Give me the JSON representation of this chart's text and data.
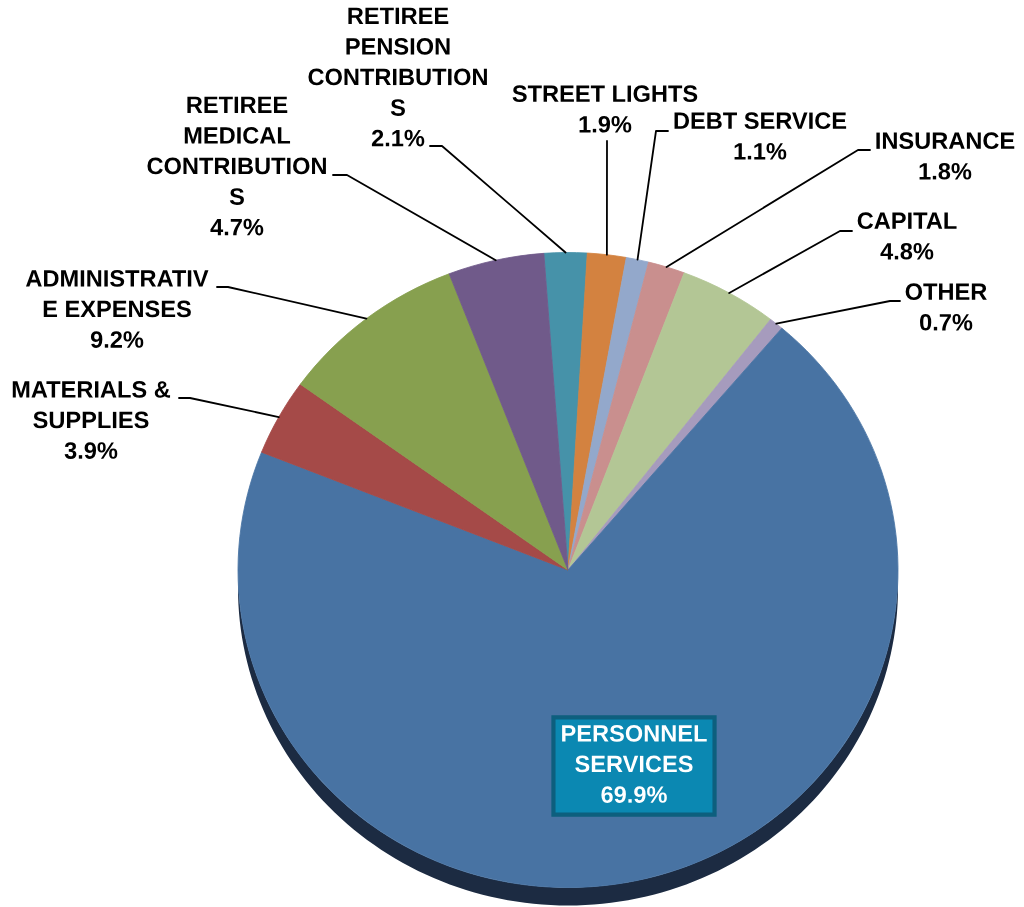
{
  "chart_data": {
    "type": "pie",
    "categories": [
      "RETIREE\nPENSION\nCONTRIBUTION\nS",
      "STREET LIGHTS",
      "DEBT SERVICE",
      "INSURANCE",
      "CAPITAL",
      "OTHER",
      "PERSONNEL\nSERVICES",
      "MATERIALS &\nSUPPLIES",
      "ADMINISTRATIV\nE EXPENSES",
      "RETIREE\nMEDICAL\nCONTRIBUTION\nS"
    ],
    "values": [
      2.1,
      1.9,
      1.1,
      1.8,
      4.8,
      0.7,
      69.9,
      3.9,
      9.2,
      4.7
    ],
    "colors": [
      "#4692a9",
      "#d38240",
      "#93a8cb",
      "#c98f8e",
      "#b3c695",
      "#a69bbd",
      "#4873a3",
      "#a54a48",
      "#87a04f",
      "#705a8a"
    ],
    "value_labels": [
      "2.1%",
      "1.9%",
      "1.1%",
      "1.8%",
      "4.8%",
      "0.7%",
      "69.9%",
      "3.9%",
      "9.2%",
      "4.7%"
    ]
  }
}
